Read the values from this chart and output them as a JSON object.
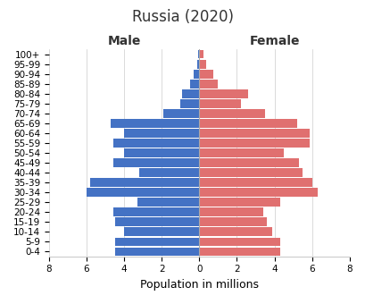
{
  "title": "Russia (2020)",
  "age_groups": [
    "0-4",
    "5-9",
    "10-14",
    "15-19",
    "20-24",
    "25-29",
    "30-34",
    "35-39",
    "40-44",
    "45-49",
    "50-54",
    "55-59",
    "60-64",
    "65-69",
    "70-74",
    "75-79",
    "80-84",
    "85-89",
    "90-94",
    "95-99",
    "100+"
  ],
  "male": [
    4.5,
    4.5,
    4.0,
    4.5,
    4.6,
    3.3,
    6.0,
    5.8,
    3.2,
    4.6,
    4.0,
    4.6,
    4.0,
    4.7,
    1.9,
    1.0,
    0.9,
    0.5,
    0.3,
    0.1,
    0.05
  ],
  "female": [
    4.3,
    4.3,
    3.9,
    3.6,
    3.4,
    4.3,
    6.3,
    6.0,
    5.5,
    5.3,
    4.5,
    5.9,
    5.9,
    5.2,
    3.5,
    2.2,
    2.6,
    1.0,
    0.75,
    0.35,
    0.2
  ],
  "male_color": "#4472C4",
  "female_color": "#E07070",
  "xlim": 8,
  "xlabel": "Population in millions",
  "male_label": "Male",
  "female_label": "Female",
  "bar_height": 0.85,
  "background_color": "#ffffff",
  "title_fontsize": 12,
  "axis_label_fontsize": 9,
  "tick_fontsize": 7.5,
  "gender_label_fontsize": 10
}
